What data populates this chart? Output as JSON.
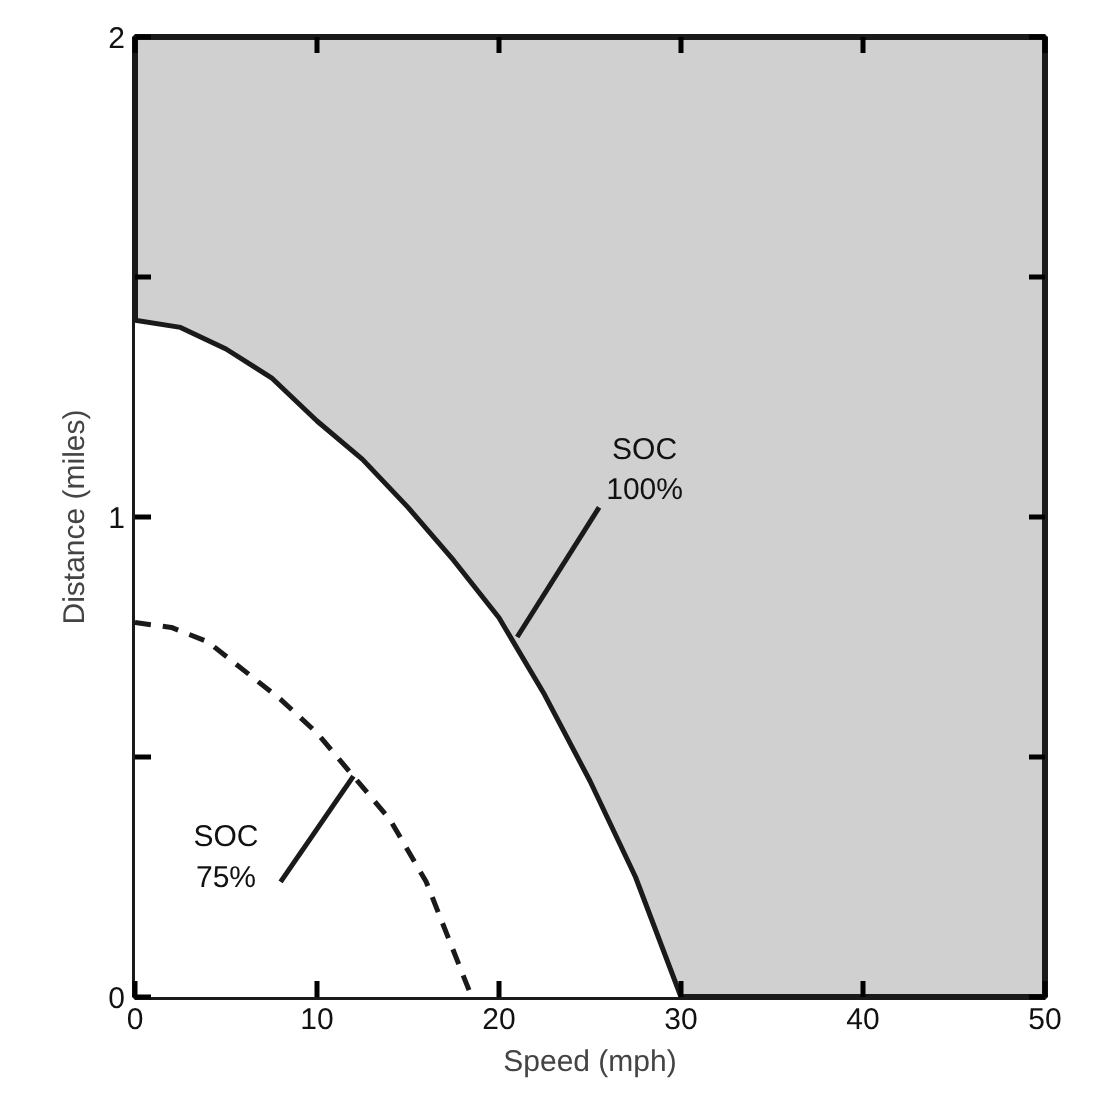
{
  "chart_data": {
    "type": "line",
    "xlabel": "Speed (mph)",
    "ylabel": "Distance (miles)",
    "xlim": [
      0,
      50
    ],
    "ylim": [
      0,
      2
    ],
    "xticks": [
      0,
      10,
      20,
      30,
      40,
      50
    ],
    "yticks": [
      0,
      {
        "value": 0.5,
        "label": null
      },
      1,
      {
        "value": 1.5,
        "label": null
      },
      2
    ],
    "grid": false,
    "marker": "none",
    "series": [
      {
        "color": "#1a1a1a",
        "line_style": "solid",
        "x": [
          0,
          2.5,
          5,
          7.5,
          10,
          12.5,
          15,
          17.5,
          20,
          22.5,
          25,
          27.5,
          30
        ],
        "values": [
          1.41,
          1.395,
          1.35,
          1.29,
          1.2,
          1.12,
          1.02,
          0.91,
          0.79,
          0.63,
          0.45,
          0.25,
          0
        ]
      },
      {
        "color": "#1a1a1a",
        "line_style": "dashed",
        "x": [
          0,
          2,
          4,
          6,
          8,
          10,
          12,
          14,
          16,
          18.5
        ],
        "values": [
          0.78,
          0.77,
          0.74,
          0.68,
          0.62,
          0.55,
          0.46,
          0.37,
          0.24,
          0
        ]
      }
    ],
    "annotations": [
      {
        "text": "SOC\n100%",
        "x": 21,
        "y": 0.75
      },
      {
        "text": "SOC\n75%",
        "x": 12,
        "y": 0.46
      }
    ]
  }
}
